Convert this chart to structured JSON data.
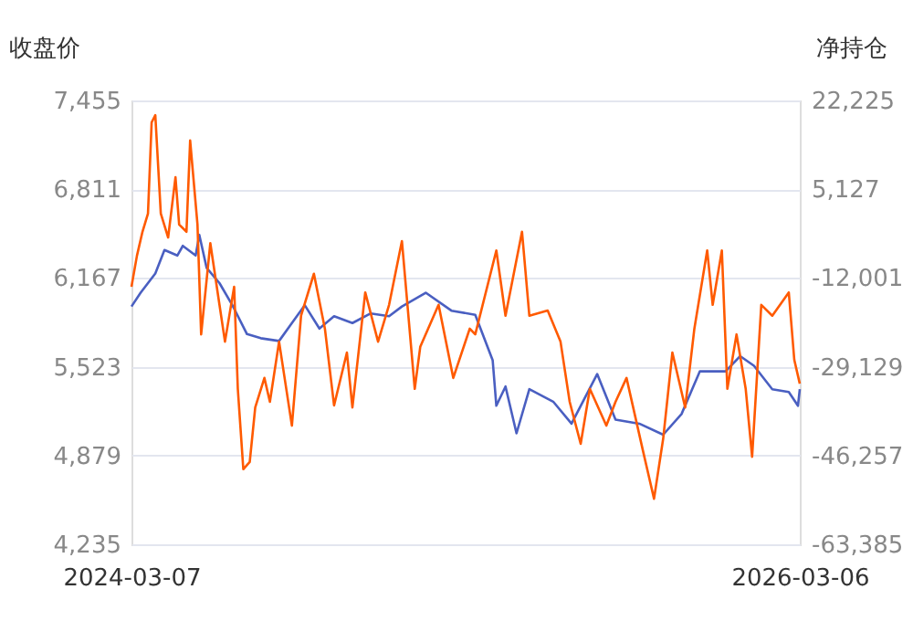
{
  "chart_data": {
    "type": "line",
    "ylabel": "收盘价",
    "y2label": "净持仓",
    "xlim": [
      "2024-03-07",
      "2026-03-06"
    ],
    "xticks": [
      "2024-03-07",
      "2026-03-06"
    ],
    "ylim": [
      4235,
      7455
    ],
    "yticks": [
      {
        "value": 4235,
        "label": "4,235"
      },
      {
        "value": 4879,
        "label": "4,879"
      },
      {
        "value": 5523,
        "label": "5,523"
      },
      {
        "value": 6167,
        "label": "6,167"
      },
      {
        "value": 6811,
        "label": "6,811"
      },
      {
        "value": 7455,
        "label": "7,455"
      }
    ],
    "y2lim": [
      -63385,
      22225
    ],
    "y2ticks": [
      {
        "value": -63385,
        "label": "-63,385"
      },
      {
        "value": -46257,
        "label": "-46,257"
      },
      {
        "value": -29129,
        "label": "-29,129"
      },
      {
        "value": -12001,
        "label": "-12,001"
      },
      {
        "value": 5127,
        "label": "5,127"
      },
      {
        "value": 22225,
        "label": "22,225"
      }
    ],
    "grid": "y",
    "series": [
      {
        "color": "#4a5fc1",
        "x": [
          "2024-03-07",
          "2024-03-17",
          "2024-04-02",
          "2024-04-12",
          "2024-04-26",
          "2024-05-02",
          "2024-05-16",
          "2024-05-20",
          "2024-05-28",
          "2024-06-11",
          "2024-06-25",
          "2024-07-11",
          "2024-07-26",
          "2024-08-15",
          "2024-08-29",
          "2024-09-12",
          "2024-09-28",
          "2024-10-14",
          "2024-11-03",
          "2024-11-23",
          "2024-12-13",
          "2024-12-27",
          "2025-01-22",
          "2025-02-19",
          "2025-03-17",
          "2025-04-05",
          "2025-04-09",
          "2025-04-19",
          "2025-05-01",
          "2025-05-15",
          "2025-06-10",
          "2025-06-30",
          "2025-07-28",
          "2025-08-17",
          "2025-09-12",
          "2025-10-08",
          "2025-10-28",
          "2025-11-17",
          "2025-12-15",
          "2025-12-31",
          "2026-01-15",
          "2026-02-04",
          "2026-02-22",
          "2026-03-04",
          "2026-03-06"
        ],
        "values": [
          5960,
          6060,
          6200,
          6370,
          6330,
          6400,
          6330,
          6480,
          6240,
          6130,
          5970,
          5760,
          5730,
          5710,
          5840,
          5970,
          5800,
          5890,
          5840,
          5910,
          5890,
          5960,
          6060,
          5930,
          5900,
          5570,
          5240,
          5380,
          5040,
          5360,
          5270,
          5110,
          5470,
          5140,
          5110,
          5030,
          5180,
          5490,
          5490,
          5600,
          5530,
          5360,
          5340,
          5240,
          5360
        ]
      },
      {
        "color": "#ff5a00",
        "axis": "y2",
        "x": [
          "2024-03-07",
          "2024-03-13",
          "2024-03-19",
          "2024-03-25",
          "2024-03-29",
          "2024-04-02",
          "2024-04-08",
          "2024-04-16",
          "2024-04-24",
          "2024-04-28",
          "2024-05-06",
          "2024-05-10",
          "2024-05-18",
          "2024-05-22",
          "2024-06-01",
          "2024-06-11",
          "2024-06-17",
          "2024-06-27",
          "2024-07-01",
          "2024-07-07",
          "2024-07-14",
          "2024-07-20",
          "2024-07-30",
          "2024-08-05",
          "2024-08-15",
          "2024-08-29",
          "2024-09-08",
          "2024-09-22",
          "2024-10-04",
          "2024-10-14",
          "2024-10-28",
          "2024-11-03",
          "2024-11-17",
          "2024-12-01",
          "2024-12-13",
          "2024-12-27",
          "2025-01-10",
          "2025-01-16",
          "2025-02-05",
          "2025-02-21",
          "2025-03-11",
          "2025-03-17",
          "2025-04-09",
          "2025-04-19",
          "2025-05-07",
          "2025-05-15",
          "2025-06-04",
          "2025-06-18",
          "2025-06-28",
          "2025-07-10",
          "2025-07-20",
          "2025-08-07",
          "2025-08-17",
          "2025-08-29",
          "2025-09-16",
          "2025-09-28",
          "2025-10-08",
          "2025-10-18",
          "2025-11-01",
          "2025-11-11",
          "2025-11-25",
          "2025-12-01",
          "2025-12-11",
          "2025-12-17",
          "2025-12-27",
          "2026-01-06",
          "2026-01-13",
          "2026-01-23",
          "2026-02-04",
          "2026-02-22",
          "2026-02-28",
          "2026-03-06"
        ],
        "values": [
          -13700,
          -7700,
          -3100,
          400,
          18000,
          19400,
          400,
          -4200,
          7400,
          -1700,
          -3100,
          14500,
          -1700,
          -22900,
          -5300,
          -17200,
          -24300,
          -13700,
          -33400,
          -48900,
          -47500,
          -37000,
          -31300,
          -35900,
          -24300,
          -40500,
          -19300,
          -11200,
          -21800,
          -36600,
          -26400,
          -37000,
          -14800,
          -24300,
          -17200,
          -4900,
          -33400,
          -25300,
          -17200,
          -31300,
          -21800,
          -22900,
          -6700,
          -19300,
          -3100,
          -19300,
          -18300,
          -24300,
          -35900,
          -44000,
          -33400,
          -40500,
          -35900,
          -31300,
          -45400,
          -54600,
          -43000,
          -26400,
          -37000,
          -21800,
          -6700,
          -17200,
          -6700,
          -33400,
          -22900,
          -33400,
          -46500,
          -17200,
          -19300,
          -14800,
          -27800,
          -32400
        ]
      }
    ]
  }
}
